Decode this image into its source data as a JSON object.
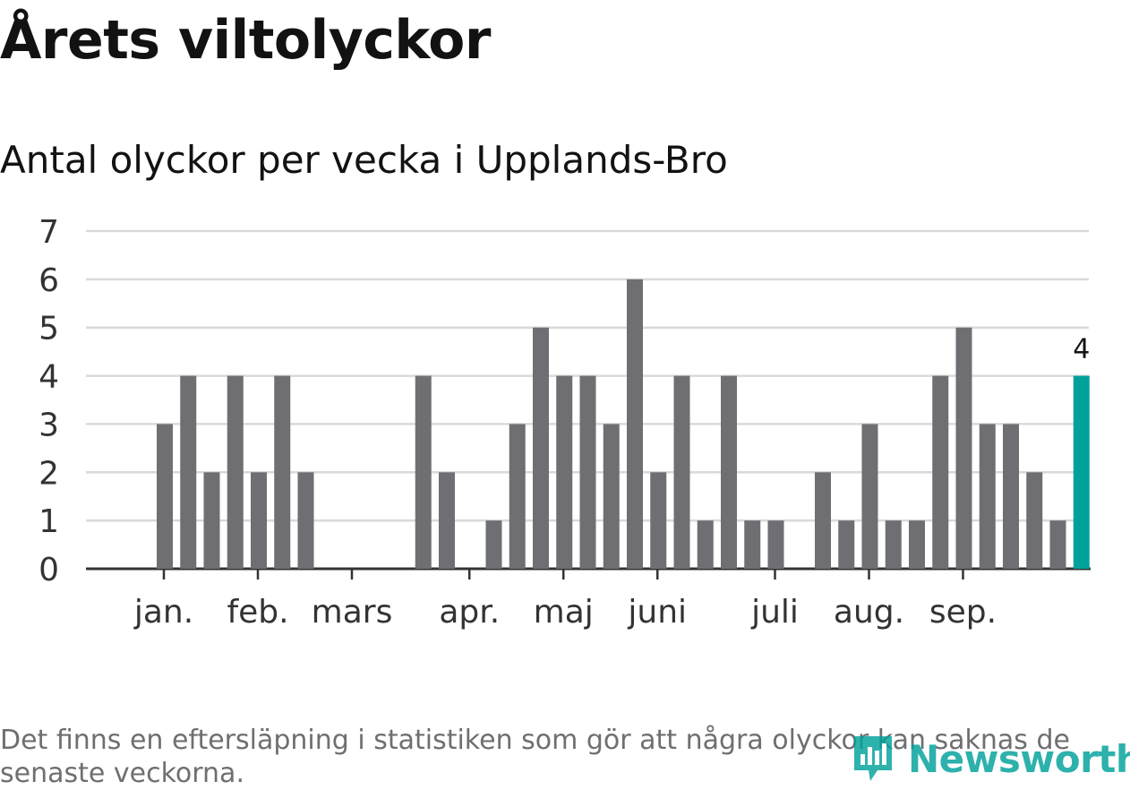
{
  "header": {
    "title": "Årets viltolyckor",
    "subtitle": "Antal olyckor per vecka i Upplands-Bro"
  },
  "footnote": "Det finns en eftersläpning i statistiken som gör att några olyckor kan saknas de senaste veckorna.",
  "logo": {
    "text": "Newsworthy",
    "icon": "newsworthy-logo-icon"
  },
  "colors": {
    "bar": "#6f6e73",
    "highlight": "#00a19a",
    "grid": "#d9d9d9",
    "axis": "#333333",
    "text": "#333333"
  },
  "chart_data": {
    "type": "bar",
    "title": "Antal olyckor per vecka i Upplands-Bro",
    "xlabel": "",
    "ylabel": "",
    "ylim": [
      0,
      7
    ],
    "yticks": [
      0,
      1,
      2,
      3,
      4,
      5,
      6,
      7
    ],
    "weeks": [
      1,
      2,
      3,
      4,
      5,
      6,
      7,
      8,
      9,
      10,
      11,
      12,
      13,
      14,
      15,
      16,
      17,
      18,
      19,
      20,
      21,
      22,
      23,
      24,
      25,
      26,
      27,
      28,
      29,
      30,
      31,
      32,
      33,
      34,
      35,
      36,
      37,
      38,
      39,
      40,
      41,
      42
    ],
    "values": [
      0,
      0,
      3,
      4,
      2,
      4,
      2,
      4,
      2,
      0,
      0,
      0,
      0,
      4,
      2,
      0,
      1,
      3,
      5,
      4,
      4,
      3,
      6,
      2,
      4,
      1,
      4,
      1,
      1,
      0,
      2,
      1,
      3,
      1,
      1,
      4,
      5,
      3,
      3,
      2,
      1,
      4
    ],
    "highlight_index": 41,
    "highlight_label": "4",
    "month_labels": [
      "jan.",
      "feb.",
      "mars",
      "apr.",
      "maj",
      "juni",
      "juli",
      "aug.",
      "sep."
    ],
    "month_ticks": [
      3,
      7,
      11,
      16,
      20,
      24,
      29,
      33,
      37
    ]
  }
}
